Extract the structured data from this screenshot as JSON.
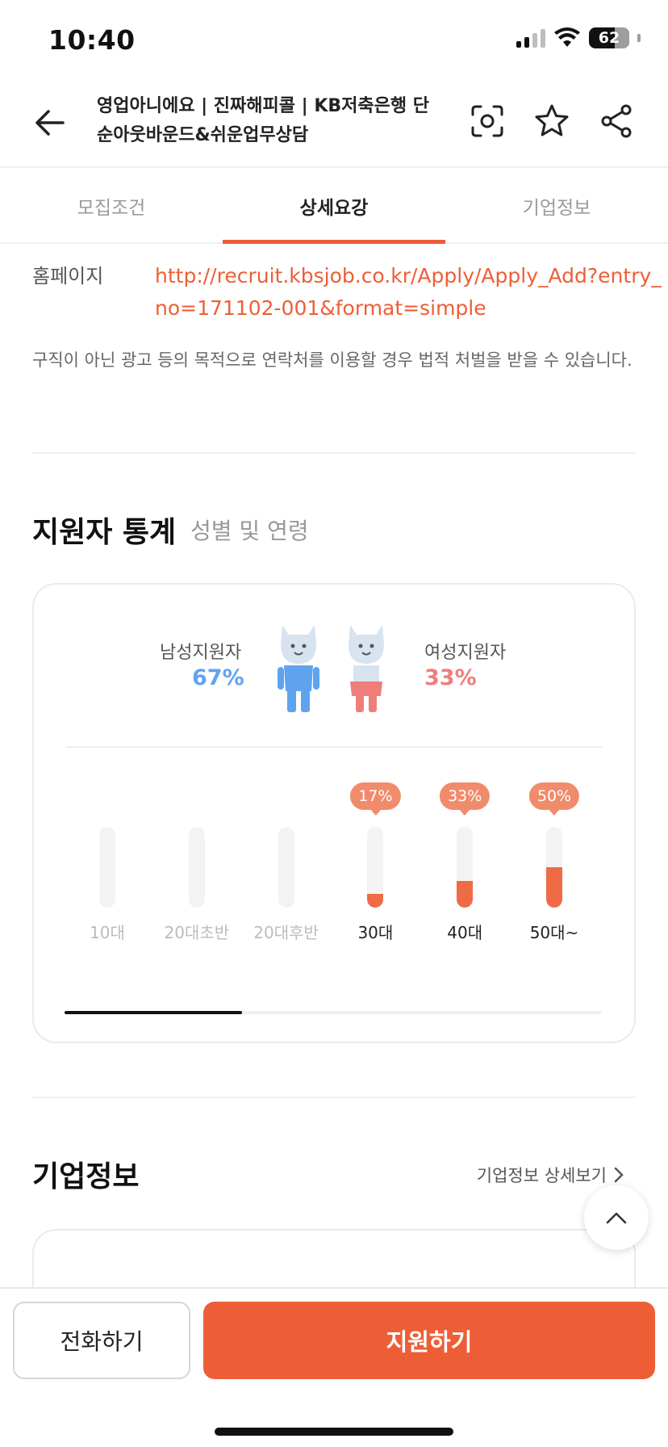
{
  "status_bar": {
    "time": "10:40",
    "battery": "62"
  },
  "header": {
    "title": "영업아니에요 | 진짜해피콜 | KB저축은행 단순아웃바운드&쉬운업무상담",
    "icons": [
      "back-arrow-icon",
      "scan-icon",
      "star-icon",
      "share-icon"
    ]
  },
  "tabs": [
    {
      "label": "모집조건"
    },
    {
      "label": "상세요강"
    },
    {
      "label": "기업정보"
    }
  ],
  "homepage": {
    "label": "홈페이지",
    "url": "http://recruit.kbsjob.co.kr/Apply/Apply_Add?entry_no=171102-001&format=simple"
  },
  "notice": "구직이 아닌 광고 등의 목적으로 연락처를 이용할 경우 법적 처벌을 받을 수 있습니다.",
  "stats": {
    "title": "지원자 통계",
    "subtitle": "성별 및 연령",
    "male": {
      "label": "남성지원자",
      "pct": "67%"
    },
    "female": {
      "label": "여성지원자",
      "pct": "33%"
    },
    "age_groups": [
      {
        "label": "10대",
        "pct": "",
        "value": 0
      },
      {
        "label": "20대초반",
        "pct": "",
        "value": 0
      },
      {
        "label": "20대후반",
        "pct": "",
        "value": 0
      },
      {
        "label": "30대",
        "pct": "17%",
        "value": 17
      },
      {
        "label": "40대",
        "pct": "33%",
        "value": 33
      },
      {
        "label": "50대~",
        "pct": "50%",
        "value": 50
      }
    ]
  },
  "company": {
    "title": "기업정보",
    "detail_link": "기업정보 상세보기"
  },
  "bottom": {
    "call_label": "전화하기",
    "apply_label": "지원하기"
  },
  "colors": {
    "accent": "#ee5e36",
    "male": "#5fa3ef",
    "female": "#ef7e7a"
  }
}
